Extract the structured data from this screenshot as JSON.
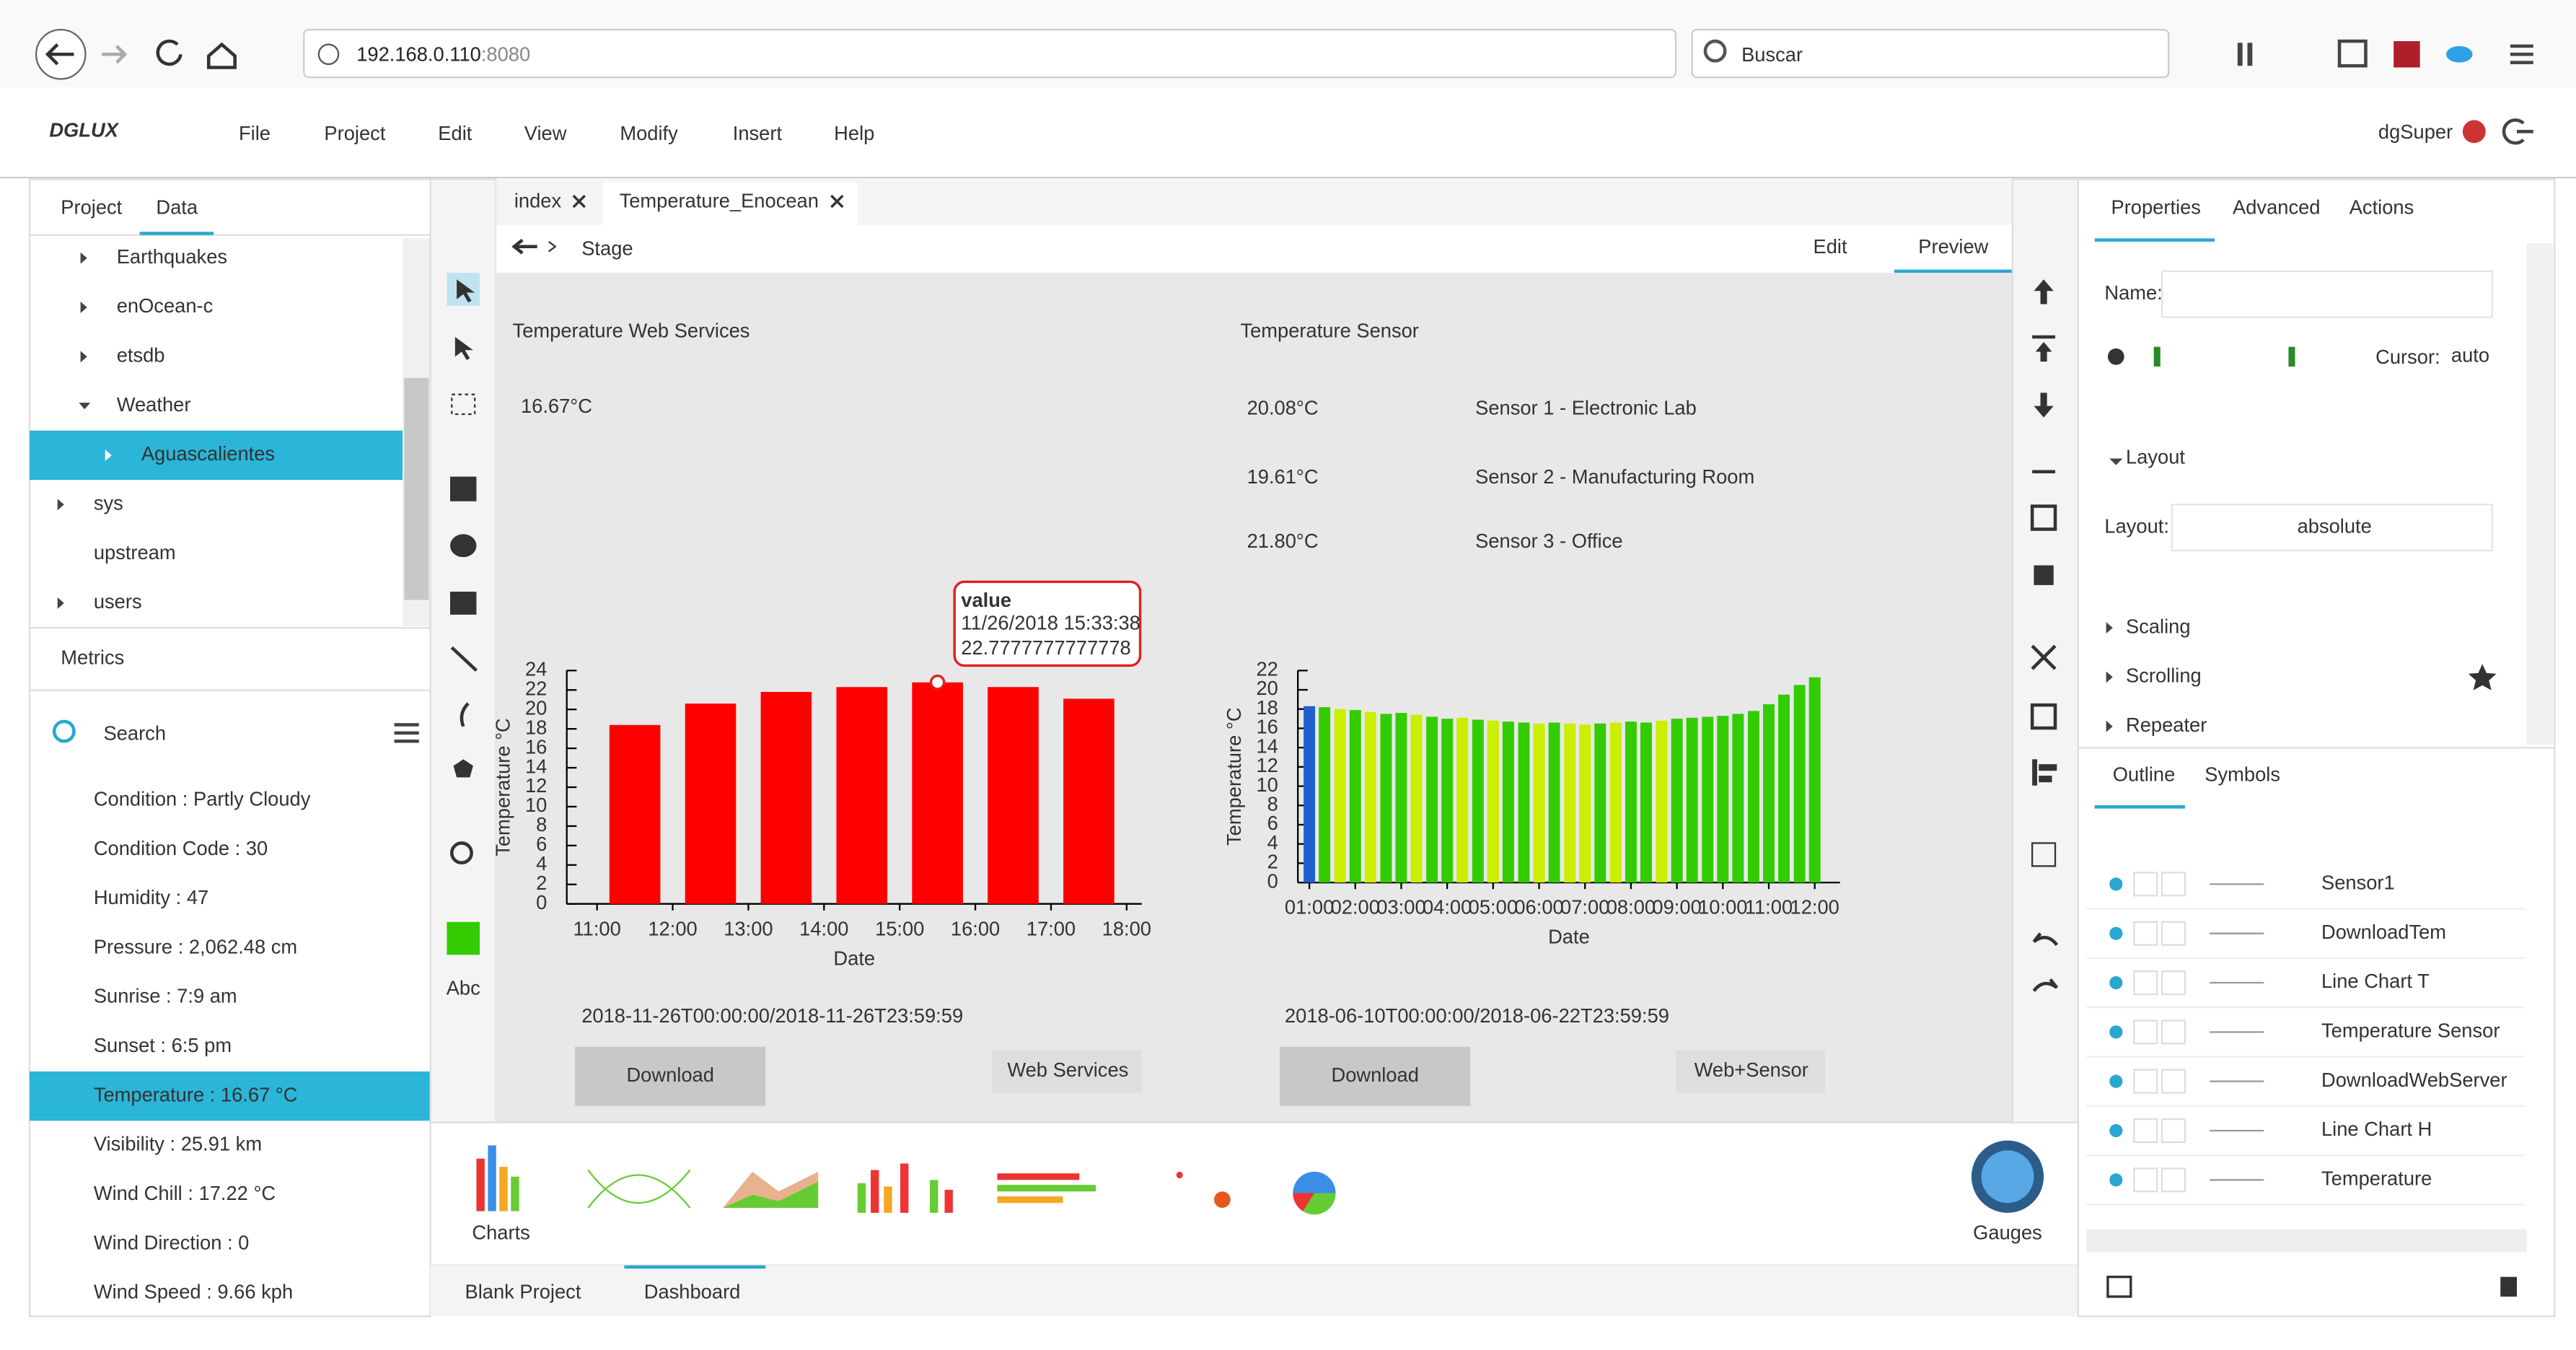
{
  "browser": {
    "url": "192.168.0.110",
    "port": ":8080",
    "search_placeholder": "Buscar"
  },
  "menu": {
    "logo": "DGLUX",
    "items": [
      "File",
      "Project",
      "Edit",
      "View",
      "Modify",
      "Insert",
      "Help"
    ],
    "user": "dgSuper"
  },
  "left_panel": {
    "tabs": [
      "Project",
      "Data"
    ],
    "tree": [
      "Earthquakes",
      "enOcean-c",
      "etsdb",
      "Weather",
      "Aguascalientes",
      "sys",
      "upstream",
      "users"
    ],
    "metrics_tab": "Metrics",
    "search_placeholder": "Search",
    "metrics": [
      "Condition : Partly Cloudy",
      "Condition Code : 30",
      "Humidity : 47",
      "Pressure : 2,062.48 cm",
      "Sunrise : 7:9 am",
      "Sunset : 6:5 pm",
      "Temperature : 16.67 °C",
      "Visibility : 25.91 km",
      "Wind Chill : 17.22 °C",
      "Wind Direction : 0",
      "Wind Speed : 9.66 kph"
    ]
  },
  "editor": {
    "tabs": [
      "index",
      "Temperature_Enocean"
    ],
    "breadcrumb": "Stage",
    "modes": [
      "Edit",
      "Preview"
    ]
  },
  "stage": {
    "web_services": {
      "title": "Temperature Web Services",
      "value": "16.67°C",
      "chart": {
        "type": "bar",
        "y_label": "Temperature °C",
        "x_label": "Date",
        "color": "#ff0000",
        "x": [
          11.5,
          12.5,
          13.5,
          14.5,
          15.5,
          16.5,
          17.5
        ],
        "values": [
          18.4,
          20.6,
          21.8,
          22.3,
          22.78,
          22.3,
          21.1
        ],
        "xlim": [
          10.6,
          18.2
        ],
        "xticks": [
          {
            "value": 11,
            "label": "11:00"
          },
          {
            "value": 12,
            "label": "12:00"
          },
          {
            "value": 13,
            "label": "13:00"
          },
          {
            "value": 14,
            "label": "14:00"
          },
          {
            "value": 15,
            "label": "15:00"
          },
          {
            "value": 16,
            "label": "16:00"
          },
          {
            "value": 17,
            "label": "17:00"
          },
          {
            "value": 18,
            "label": "18:00"
          }
        ],
        "ylim": [
          0,
          24
        ],
        "yticks": [
          0,
          2,
          4,
          6,
          8,
          10,
          12,
          14,
          16,
          18,
          20,
          22,
          24
        ]
      },
      "tooltip": {
        "title": "value",
        "date": "11/26/2018 15:33:38",
        "value_text": "22.7777777777778"
      },
      "date_range": "2018-11-26T00:00:00/2018-11-26T23:59:59",
      "download": "Download",
      "source": "Web Services"
    },
    "sensor": {
      "title": "Temperature Sensor",
      "readings": [
        {
          "value": "20.08°C",
          "label": "Sensor 1 - Electronic Lab"
        },
        {
          "value": "19.61°C",
          "label": "Sensor 2 - Manufacturing Room"
        },
        {
          "value": "21.80°C",
          "label": "Sensor 3 - Office"
        }
      ],
      "chart": {
        "type": "bar",
        "y_label": "Temperature °C",
        "x_label": "Date",
        "x": [
          1.0,
          1.33,
          1.67,
          2.0,
          2.33,
          2.67,
          3.0,
          3.33,
          3.67,
          4.0,
          4.33,
          4.67,
          5.0,
          5.33,
          5.67,
          6.0,
          6.33,
          6.67,
          7.0,
          7.33,
          7.67,
          8.0,
          8.33,
          8.67,
          9.0,
          9.33,
          9.67,
          10.0,
          10.33,
          10.67,
          11.0,
          11.33,
          11.67,
          12.0
        ],
        "values": [
          18.3,
          18.2,
          18.0,
          17.9,
          17.7,
          17.5,
          17.6,
          17.4,
          17.2,
          17.0,
          17.1,
          16.9,
          16.8,
          16.7,
          16.6,
          16.5,
          16.6,
          16.5,
          16.4,
          16.5,
          16.6,
          16.7,
          16.6,
          16.8,
          17.0,
          17.1,
          17.2,
          17.3,
          17.5,
          17.8,
          18.5,
          19.5,
          20.5,
          21.3
        ],
        "colors": [
          "#1f5fd0",
          "#33cc00",
          "#ccee00",
          "#33cc00",
          "#ccee00",
          "#33cc00",
          "#33cc00",
          "#ccee00",
          "#33cc00",
          "#33cc00",
          "#ccee00",
          "#33cc00",
          "#ccee00",
          "#33cc00",
          "#33cc00",
          "#ccee00",
          "#33cc00",
          "#ccee00",
          "#ccee00",
          "#33cc00",
          "#ccee00",
          "#33cc00",
          "#33cc00",
          "#ccee00",
          "#33cc00",
          "#33cc00",
          "#33cc00",
          "#33cc00",
          "#33cc00",
          "#33cc00",
          "#33cc00",
          "#33cc00",
          "#33cc00",
          "#33cc00"
        ],
        "xlim": [
          0.75,
          12.55
        ],
        "xticks": [
          {
            "value": 1,
            "label": "01:00"
          },
          {
            "value": 2,
            "label": "02:00"
          },
          {
            "value": 3,
            "label": "03:00"
          },
          {
            "value": 4,
            "label": "04:00"
          },
          {
            "value": 5,
            "label": "05:00"
          },
          {
            "value": 6,
            "label": "06:00"
          },
          {
            "value": 7,
            "label": "07:00"
          },
          {
            "value": 8,
            "label": "08:00"
          },
          {
            "value": 9,
            "label": "09:00"
          },
          {
            "value": 10,
            "label": "10:00"
          },
          {
            "value": 11,
            "label": "11:00"
          },
          {
            "value": 12,
            "label": "12:00"
          }
        ],
        "ylim": [
          0,
          22
        ],
        "yticks": [
          0,
          2,
          4,
          6,
          8,
          10,
          12,
          14,
          16,
          18,
          20,
          22
        ]
      },
      "date_range": "2018-06-10T00:00:00/2018-06-22T23:59:59",
      "download": "Download",
      "source": "Web+Sensor"
    }
  },
  "toolbar": {
    "text_tool": "Abc"
  },
  "palette": {
    "charts": "Charts",
    "gauges": "Gauges"
  },
  "bottom_tabs": [
    "Blank Project",
    "Dashboard"
  ],
  "properties": {
    "tabs": [
      "Properties",
      "Advanced",
      "Actions"
    ],
    "name_label": "Name:",
    "cursor_label": "Cursor:",
    "cursor_value": "auto",
    "layout_section": "Layout",
    "layout_label": "Layout:",
    "layout_value": "absolute",
    "sections": [
      "Scaling",
      "Scrolling",
      "Repeater"
    ]
  },
  "outline": {
    "tabs": [
      "Outline",
      "Symbols"
    ],
    "items": [
      "Sensor1",
      "DownloadTem",
      "Line Chart T",
      "Temperature Sensor",
      "DownloadWebServer",
      "Line Chart H",
      "Temperature"
    ]
  }
}
